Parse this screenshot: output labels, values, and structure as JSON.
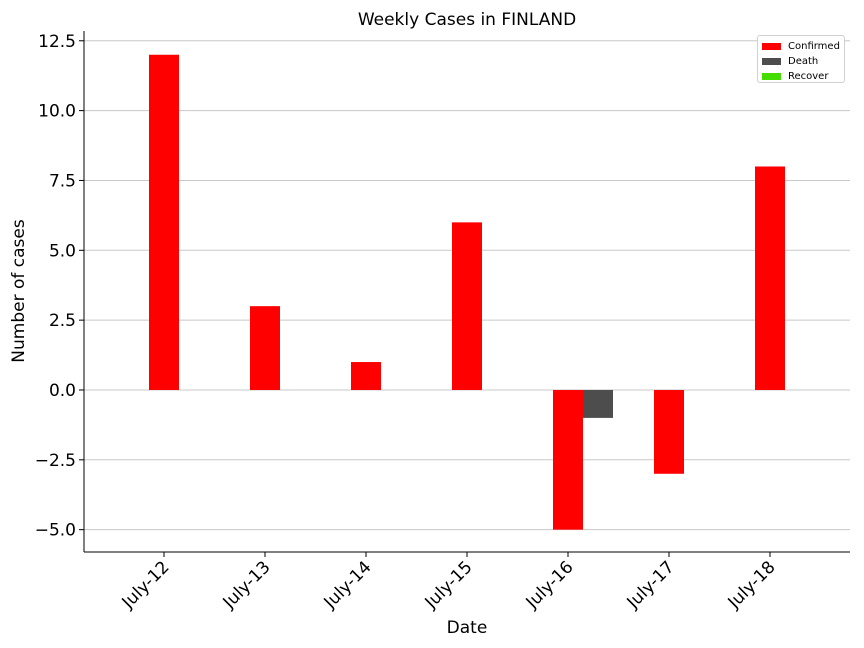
{
  "chart_data": {
    "type": "bar",
    "title": "Weekly Cases in FINLAND",
    "xlabel": "Date",
    "ylabel": "Number of cases",
    "categories": [
      "July-12",
      "July-13",
      "July-14",
      "July-15",
      "July-16",
      "July-17",
      "July-18"
    ],
    "series": [
      {
        "name": "Confirmed",
        "color": "#ff0000",
        "values": [
          12,
          3,
          1,
          6,
          -5,
          -3,
          8
        ]
      },
      {
        "name": "Death",
        "color": "#4d4d4d",
        "values": [
          0,
          0,
          0,
          0,
          -1,
          0,
          0
        ]
      },
      {
        "name": "Recover",
        "color": "#44dd00",
        "values": [
          0,
          0,
          0,
          0,
          0,
          0,
          0
        ]
      }
    ],
    "ylim": [
      -5.8,
      12.85
    ],
    "yticks": [
      -5.0,
      -2.5,
      0.0,
      2.5,
      5.0,
      7.5,
      10.0,
      12.5
    ],
    "ytick_labels": [
      "−5.0",
      "−2.5",
      "0.0",
      "2.5",
      "5.0",
      "7.5",
      "10.0",
      "12.5"
    ],
    "grid": "horizontal",
    "legend_position": "top-right"
  }
}
